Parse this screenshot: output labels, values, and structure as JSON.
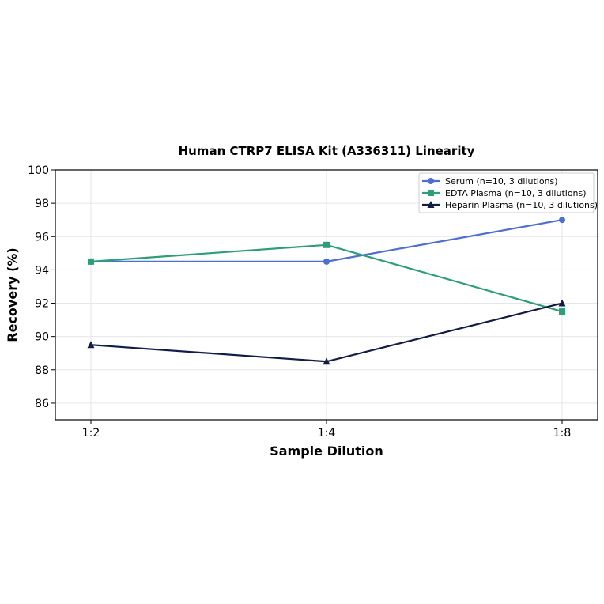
{
  "chart_data": {
    "type": "line",
    "title": "Human CTRP7 ELISA Kit (A336311) Linearity",
    "xlabel": "Sample Dilution",
    "ylabel": "Recovery (%)",
    "categories": [
      "1:2",
      "1:4",
      "1:8"
    ],
    "ylim": [
      85,
      100
    ],
    "yticks": [
      86,
      88,
      90,
      92,
      94,
      96,
      98,
      100
    ],
    "grid": true,
    "legend_position": "top-right",
    "series": [
      {
        "name": "Serum (n=10, 3 dilutions)",
        "values": [
          94.5,
          94.5,
          97.0
        ],
        "color": "#4f6fcf",
        "marker": "circle"
      },
      {
        "name": "EDTA Plasma (n=10, 3 dilutions)",
        "values": [
          94.5,
          95.5,
          91.5
        ],
        "color": "#2e9e7a",
        "marker": "square"
      },
      {
        "name": "Heparin Plasma (n=10, 3 dilutions)",
        "values": [
          89.5,
          88.5,
          92.0
        ],
        "color": "#111d45",
        "marker": "triangle"
      }
    ]
  }
}
